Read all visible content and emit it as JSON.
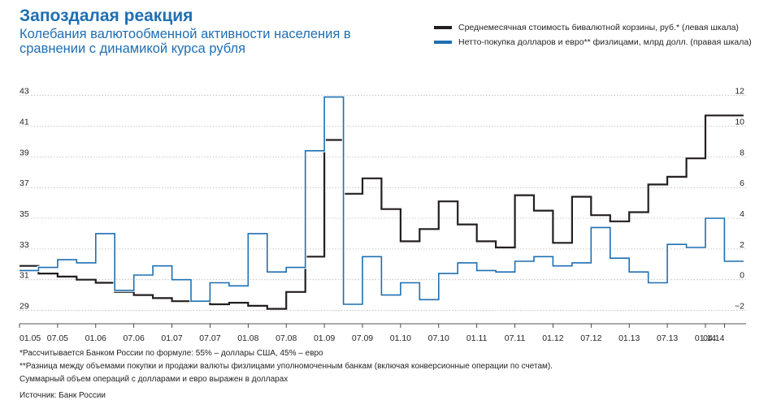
{
  "header": {
    "title": "Запоздалая реакция",
    "subtitle": "Колебания валютообменной активности населения в сравнении с динамикой курса рубля"
  },
  "legend": [
    {
      "label": "Среднемесячная стоимость бивалютной корзины, руб.* (левая шкала)",
      "color": "#231f20"
    },
    {
      "label": "Нетто-покупка долларов и евро** физлицами, млрд долл. (правая шкала)",
      "color": "#1f6fb2"
    }
  ],
  "notes": [
    "*Рассчитывается Банком России по формуле: 55% – доллары США, 45% – евро",
    "**Разница между объемами покупки и продажи валюты физлицами уполномоченным банкам (включая конверсионные операции по счетам).",
    "Суммарный объем операций с долларами и евро выражен в долларах"
  ],
  "source": "Источник: Банк России",
  "chart_data": {
    "type": "line",
    "step": true,
    "x_ticks": [
      "01.05",
      "07.05",
      "01.06",
      "07.06",
      "01.07",
      "07.07",
      "01.08",
      "07.08",
      "01.09",
      "07.09",
      "01.10",
      "07.10",
      "01.11",
      "07.11",
      "01.12",
      "07.12",
      "01.13",
      "07.13",
      "01.14",
      "04.14"
    ],
    "left_axis": {
      "ticks": [
        29,
        31,
        33,
        35,
        37,
        39,
        41,
        43
      ],
      "ylim": [
        28.5,
        43.3
      ]
    },
    "right_axis": {
      "ticks": [
        -2,
        0,
        2,
        4,
        6,
        8,
        10,
        12
      ],
      "ylim": [
        -2.5,
        12.3
      ]
    },
    "series": [
      {
        "name": "Среднемесячная стоимость бивалютной корзины, руб.* (левая шкала)",
        "axis": "left",
        "color": "#231f20",
        "periods": [
          "01.05",
          "04.05",
          "07.05",
          "10.05",
          "01.06",
          "04.06",
          "07.06",
          "10.06",
          "01.07",
          "04.07",
          "07.07",
          "10.07",
          "01.08",
          "04.08",
          "07.08",
          "10.08",
          "01.09",
          "04.09",
          "07.09",
          "10.09",
          "01.10",
          "04.10",
          "07.10",
          "10.10",
          "01.11",
          "04.11",
          "07.11",
          "10.11",
          "01.12",
          "04.12",
          "07.12",
          "10.12",
          "01.13",
          "04.13",
          "07.13",
          "10.13",
          "01.14",
          "04.14"
        ],
        "values": [
          31.9,
          31.4,
          31.2,
          31.0,
          30.8,
          30.2,
          30.0,
          29.8,
          29.6,
          29.6,
          29.4,
          29.5,
          29.3,
          29.1,
          30.2,
          32.5,
          40.1,
          36.6,
          37.6,
          35.6,
          33.5,
          34.3,
          36.1,
          34.6,
          33.5,
          33.1,
          36.5,
          35.5,
          33.4,
          36.4,
          35.2,
          34.8,
          35.4,
          37.2,
          37.7,
          38.9,
          41.7,
          41.7
        ]
      },
      {
        "name": "Нетто-покупка долларов и евро** физлицами, млрд долл. (правая шкала)",
        "axis": "right",
        "color": "#1f6fb2",
        "periods": [
          "01.05",
          "04.05",
          "07.05",
          "10.05",
          "01.06",
          "04.06",
          "07.06",
          "10.06",
          "01.07",
          "04.07",
          "07.07",
          "10.07",
          "01.08",
          "04.08",
          "07.08",
          "10.08",
          "01.09",
          "04.09",
          "07.09",
          "10.09",
          "01.10",
          "04.10",
          "07.10",
          "10.10",
          "01.11",
          "04.11",
          "07.11",
          "10.11",
          "01.12",
          "04.12",
          "07.12",
          "10.12",
          "01.13",
          "04.13",
          "07.13",
          "10.13",
          "01.14",
          "04.14"
        ],
        "values": [
          0.6,
          0.8,
          1.3,
          1.1,
          3.0,
          -0.7,
          0.3,
          0.9,
          0.0,
          -1.4,
          -0.2,
          -0.4,
          3.0,
          0.5,
          0.8,
          8.4,
          11.9,
          -1.6,
          1.5,
          -1.0,
          -0.2,
          -1.3,
          0.4,
          1.1,
          0.6,
          0.5,
          1.2,
          1.5,
          0.9,
          1.1,
          3.4,
          1.4,
          0.5,
          -0.2,
          2.3,
          2.1,
          4.0,
          1.2
        ]
      }
    ],
    "grid": "horizontal"
  }
}
